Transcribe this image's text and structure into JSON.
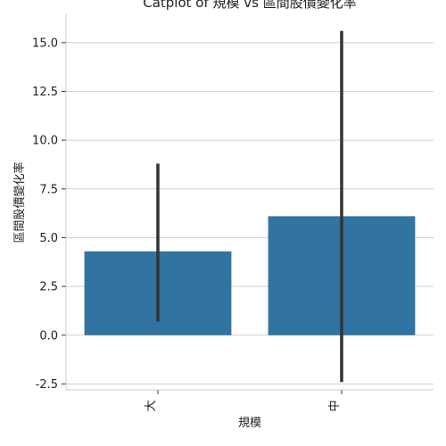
{
  "chart_data": {
    "type": "bar",
    "title": "Catplot of 規模 vs 區間股價變化率",
    "xlabel": "規模",
    "ylabel": "區間股價變化率",
    "categories": [
      "大",
      "中"
    ],
    "values": [
      4.3,
      6.1
    ],
    "error_low": [
      0.7,
      -2.4
    ],
    "error_high": [
      8.8,
      15.6
    ],
    "ylim": [
      -2.8,
      16.5
    ],
    "yticks": [
      -2.5,
      0.0,
      2.5,
      5.0,
      7.5,
      10.0,
      12.5,
      15.0
    ],
    "ytick_labels": [
      "-2.5",
      "0.0",
      "2.5",
      "5.0",
      "7.5",
      "10.0",
      "12.5",
      "15.0"
    ],
    "grid": true,
    "bar_color": "#3274a1",
    "error_color": "#333333",
    "grid_color": "#d0d0d0"
  }
}
